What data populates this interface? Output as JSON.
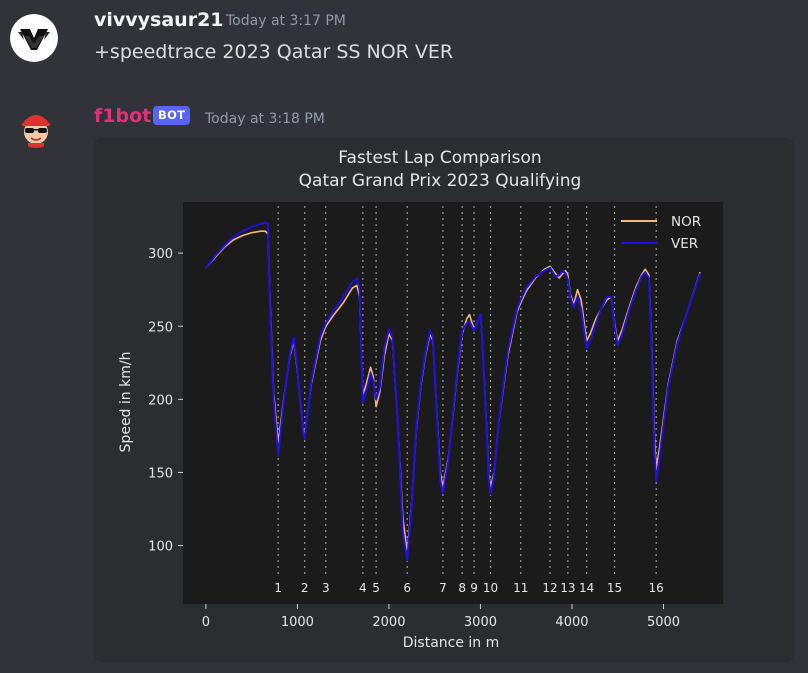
{
  "messages": [
    {
      "username": "vivvysaur21",
      "timestamp": "Today at 3:17 PM",
      "text": "+speedtrace 2023 Qatar SS NOR VER"
    },
    {
      "username": "f1bot",
      "badge": "BOT",
      "timestamp": "Today at 3:18 PM"
    }
  ],
  "colors": {
    "username_user": "#f2f3f5",
    "username_bot": "#e0307a",
    "plot_bg": "#1c1b1b",
    "NOR": "#f3b878",
    "VER": "#1f10e0"
  },
  "chart_data": {
    "type": "line",
    "title": "Fastest Lap Comparison",
    "subtitle": "Qatar Grand Prix 2023 Qualifying",
    "xlabel": "Distance in m",
    "ylabel": "Speed in km/h",
    "xlim": [
      -250,
      5650
    ],
    "ylim": [
      60,
      335
    ],
    "xticks": [
      0,
      1000,
      2000,
      3000,
      4000,
      5000
    ],
    "yticks": [
      100,
      150,
      200,
      250,
      300
    ],
    "legend": "top-right",
    "grid": false,
    "corners": [
      {
        "label": "1",
        "x": 790
      },
      {
        "label": "2",
        "x": 1080
      },
      {
        "label": "3",
        "x": 1310
      },
      {
        "label": "4",
        "x": 1715
      },
      {
        "label": "5",
        "x": 1860
      },
      {
        "label": "6",
        "x": 2200
      },
      {
        "label": "7",
        "x": 2590
      },
      {
        "label": "8",
        "x": 2800
      },
      {
        "label": "9",
        "x": 2930
      },
      {
        "label": "10",
        "x": 3110
      },
      {
        "label": "11",
        "x": 3440
      },
      {
        "label": "12",
        "x": 3760
      },
      {
        "label": "13",
        "x": 3955
      },
      {
        "label": "14",
        "x": 4160
      },
      {
        "label": "15",
        "x": 4465
      },
      {
        "label": "16",
        "x": 4920
      }
    ],
    "series": [
      {
        "name": "NOR",
        "points": [
          [
            0,
            290
          ],
          [
            100,
            297
          ],
          [
            200,
            304
          ],
          [
            300,
            309
          ],
          [
            400,
            312
          ],
          [
            500,
            314
          ],
          [
            600,
            315
          ],
          [
            650,
            315
          ],
          [
            680,
            313
          ],
          [
            700,
            270
          ],
          [
            740,
            205
          ],
          [
            790,
            170
          ],
          [
            850,
            200
          ],
          [
            920,
            230
          ],
          [
            960,
            240
          ],
          [
            1000,
            220
          ],
          [
            1060,
            180
          ],
          [
            1080,
            175
          ],
          [
            1150,
            210
          ],
          [
            1250,
            240
          ],
          [
            1310,
            250
          ],
          [
            1400,
            258
          ],
          [
            1500,
            266
          ],
          [
            1600,
            276
          ],
          [
            1650,
            278
          ],
          [
            1680,
            270
          ],
          [
            1715,
            203
          ],
          [
            1750,
            210
          ],
          [
            1800,
            222
          ],
          [
            1830,
            215
          ],
          [
            1860,
            195
          ],
          [
            1900,
            205
          ],
          [
            1950,
            230
          ],
          [
            2000,
            245
          ],
          [
            2040,
            240
          ],
          [
            2100,
            180
          ],
          [
            2150,
            120
          ],
          [
            2200,
            95
          ],
          [
            2250,
            130
          ],
          [
            2300,
            180
          ],
          [
            2350,
            210
          ],
          [
            2400,
            230
          ],
          [
            2450,
            245
          ],
          [
            2480,
            240
          ],
          [
            2520,
            195
          ],
          [
            2560,
            150
          ],
          [
            2590,
            140
          ],
          [
            2650,
            160
          ],
          [
            2700,
            190
          ],
          [
            2750,
            220
          ],
          [
            2800,
            245
          ],
          [
            2850,
            255
          ],
          [
            2880,
            258
          ],
          [
            2930,
            248
          ],
          [
            2980,
            255
          ],
          [
            3000,
            258
          ],
          [
            3020,
            240
          ],
          [
            3060,
            190
          ],
          [
            3090,
            150
          ],
          [
            3110,
            140
          ],
          [
            3150,
            150
          ],
          [
            3200,
            185
          ],
          [
            3300,
            230
          ],
          [
            3400,
            260
          ],
          [
            3440,
            266
          ],
          [
            3500,
            274
          ],
          [
            3600,
            283
          ],
          [
            3700,
            289
          ],
          [
            3760,
            291
          ],
          [
            3820,
            286
          ],
          [
            3860,
            283
          ],
          [
            3900,
            286
          ],
          [
            3930,
            288
          ],
          [
            3955,
            285
          ],
          [
            3980,
            272
          ],
          [
            4020,
            265
          ],
          [
            4060,
            275
          ],
          [
            4100,
            268
          ],
          [
            4160,
            240
          ],
          [
            4200,
            245
          ],
          [
            4260,
            255
          ],
          [
            4320,
            262
          ],
          [
            4380,
            268
          ],
          [
            4430,
            270
          ],
          [
            4465,
            252
          ],
          [
            4500,
            240
          ],
          [
            4550,
            248
          ],
          [
            4620,
            262
          ],
          [
            4700,
            277
          ],
          [
            4760,
            285
          ],
          [
            4800,
            289
          ],
          [
            4840,
            285
          ],
          [
            4870,
            240
          ],
          [
            4900,
            175
          ],
          [
            4920,
            152
          ],
          [
            4960,
            168
          ],
          [
            5050,
            210
          ],
          [
            5150,
            240
          ],
          [
            5250,
            258
          ],
          [
            5400,
            287
          ]
        ]
      },
      {
        "name": "VER",
        "points": [
          [
            0,
            290
          ],
          [
            100,
            298
          ],
          [
            200,
            305
          ],
          [
            300,
            311
          ],
          [
            400,
            315
          ],
          [
            500,
            318
          ],
          [
            600,
            320
          ],
          [
            650,
            321
          ],
          [
            680,
            320
          ],
          [
            700,
            265
          ],
          [
            740,
            200
          ],
          [
            790,
            162
          ],
          [
            850,
            198
          ],
          [
            920,
            232
          ],
          [
            960,
            242
          ],
          [
            1000,
            222
          ],
          [
            1060,
            178
          ],
          [
            1080,
            173
          ],
          [
            1150,
            212
          ],
          [
            1250,
            243
          ],
          [
            1310,
            252
          ],
          [
            1400,
            261
          ],
          [
            1500,
            270
          ],
          [
            1600,
            280
          ],
          [
            1650,
            283
          ],
          [
            1680,
            275
          ],
          [
            1715,
            198
          ],
          [
            1750,
            205
          ],
          [
            1800,
            218
          ],
          [
            1830,
            212
          ],
          [
            1860,
            200
          ],
          [
            1900,
            208
          ],
          [
            1950,
            235
          ],
          [
            2000,
            248
          ],
          [
            2040,
            242
          ],
          [
            2100,
            180
          ],
          [
            2150,
            110
          ],
          [
            2200,
            90
          ],
          [
            2250,
            128
          ],
          [
            2300,
            182
          ],
          [
            2350,
            212
          ],
          [
            2400,
            232
          ],
          [
            2450,
            247
          ],
          [
            2480,
            242
          ],
          [
            2520,
            193
          ],
          [
            2560,
            145
          ],
          [
            2590,
            136
          ],
          [
            2650,
            158
          ],
          [
            2700,
            192
          ],
          [
            2750,
            222
          ],
          [
            2800,
            247
          ],
          [
            2850,
            252
          ],
          [
            2880,
            253
          ],
          [
            2930,
            247
          ],
          [
            2980,
            255
          ],
          [
            3000,
            258
          ],
          [
            3020,
            240
          ],
          [
            3060,
            188
          ],
          [
            3090,
            146
          ],
          [
            3110,
            135
          ],
          [
            3150,
            148
          ],
          [
            3200,
            186
          ],
          [
            3300,
            233
          ],
          [
            3400,
            262
          ],
          [
            3440,
            268
          ],
          [
            3500,
            276
          ],
          [
            3600,
            284
          ],
          [
            3700,
            288
          ],
          [
            3760,
            290
          ],
          [
            3820,
            284
          ],
          [
            3860,
            285
          ],
          [
            3900,
            288
          ],
          [
            3930,
            286
          ],
          [
            3955,
            282
          ],
          [
            3980,
            270
          ],
          [
            4020,
            263
          ],
          [
            4060,
            270
          ],
          [
            4100,
            262
          ],
          [
            4160,
            235
          ],
          [
            4200,
            240
          ],
          [
            4260,
            252
          ],
          [
            4320,
            262
          ],
          [
            4380,
            270
          ],
          [
            4430,
            270
          ],
          [
            4465,
            250
          ],
          [
            4500,
            237
          ],
          [
            4550,
            245
          ],
          [
            4620,
            260
          ],
          [
            4700,
            275
          ],
          [
            4760,
            284
          ],
          [
            4800,
            287
          ],
          [
            4840,
            283
          ],
          [
            4870,
            235
          ],
          [
            4900,
            165
          ],
          [
            4920,
            144
          ],
          [
            4960,
            162
          ],
          [
            5050,
            208
          ],
          [
            5150,
            238
          ],
          [
            5250,
            258
          ],
          [
            5400,
            286
          ]
        ]
      }
    ]
  }
}
